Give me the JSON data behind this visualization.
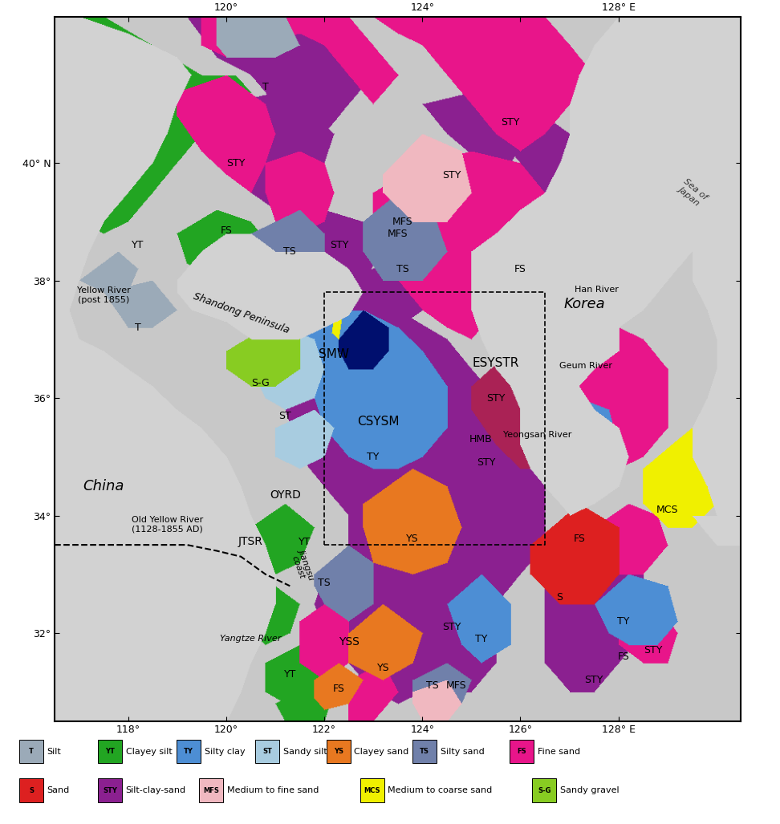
{
  "figsize": [
    9.72,
    10.27
  ],
  "dpi": 100,
  "map_xlim": [
    116.5,
    130.5
  ],
  "map_ylim": [
    30.5,
    42.5
  ],
  "land_color": "#d2d2d2",
  "sea_color": "#c8c8c8",
  "colors": {
    "T": "#9baab8",
    "YT": "#22a522",
    "TY": "#4d8ed4",
    "ST": "#a8cce0",
    "YS": "#e87820",
    "TS": "#7080aa",
    "FS": "#e8158a",
    "S": "#dd2020",
    "STY": "#8b2090",
    "MFS": "#f0b8c0",
    "MCS": "#f0f000",
    "SG": "#88cc22",
    "dark_navy": "#000f6e",
    "hmb": "#aa2255",
    "yellow_strip": "#f0f000",
    "land": "#d2d2d2"
  },
  "legend_row1": [
    [
      "T",
      "Silt",
      "#9baab8"
    ],
    [
      "YT",
      "Clayey silt",
      "#22a522"
    ],
    [
      "TY",
      "Silty clay",
      "#4d8ed4"
    ],
    [
      "ST",
      "Sandy silt",
      "#a8cce0"
    ],
    [
      "YS",
      "Clayey sand",
      "#e87820"
    ],
    [
      "TS",
      "Silty sand",
      "#7080aa"
    ],
    [
      "FS",
      "Fine sand",
      "#e8158a"
    ]
  ],
  "legend_row2": [
    [
      "S",
      "Sand",
      "#dd2020"
    ],
    [
      "STY",
      "Silt-clay-sand",
      "#8b2090"
    ],
    [
      "MFS",
      "Medium to fine sand",
      "#f0b8c0"
    ],
    [
      "MCS",
      "Medium to coarse sand",
      "#f0f000"
    ],
    [
      "S-G",
      "Sandy gravel",
      "#88cc22"
    ]
  ]
}
